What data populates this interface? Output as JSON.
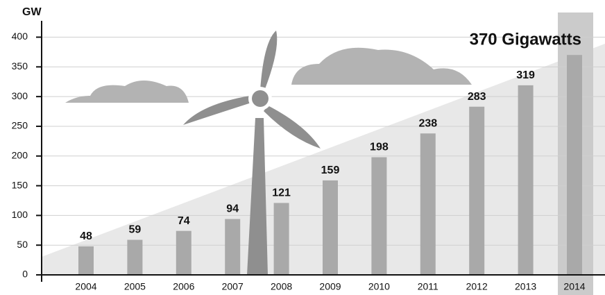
{
  "chart_data": {
    "type": "bar",
    "y_label": "GW",
    "annotation": "370 Gigawatts",
    "categories": [
      "2004",
      "2005",
      "2006",
      "2007",
      "2008",
      "2009",
      "2010",
      "2011",
      "2012",
      "2013",
      "2014"
    ],
    "values": [
      48,
      59,
      74,
      94,
      121,
      159,
      198,
      238,
      283,
      319,
      370
    ],
    "labeled": [
      true,
      true,
      true,
      true,
      true,
      true,
      true,
      true,
      true,
      true,
      false
    ],
    "color": "#a9a9a9",
    "ylim": [
      0,
      445
    ],
    "yticks": [
      0,
      50,
      100,
      150,
      200,
      250,
      300,
      350,
      400
    ],
    "grid": true
  }
}
